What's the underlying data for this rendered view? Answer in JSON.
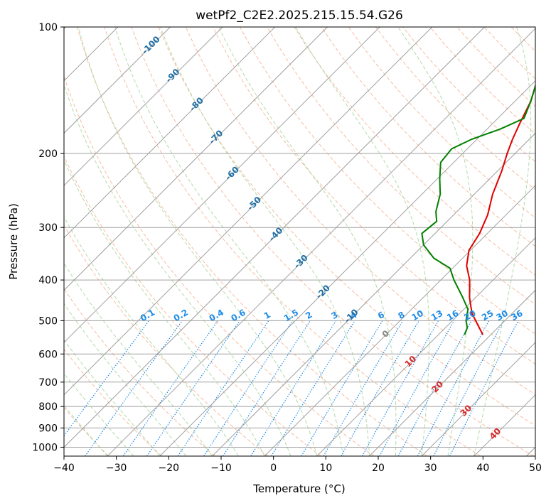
{
  "chart_data": {
    "type": "line",
    "title": "wetPf2_C2E2.2025.215.15.54.G26",
    "xlabel": "Temperature (°C)",
    "ylabel": "Pressure (hPa)",
    "xlim": [
      -40,
      50
    ],
    "ylim": [
      1050,
      100
    ],
    "y_scale": "log",
    "grid": true,
    "x_ticks": [
      "−40",
      "−30",
      "−20",
      "−10",
      "0",
      "10",
      "20",
      "30",
      "40",
      "50"
    ],
    "y_ticks": [
      "100",
      "200",
      "300",
      "400",
      "500",
      "600",
      "700",
      "800",
      "900",
      "1000"
    ],
    "series": [
      {
        "color": "#e00000",
        "pressure": [
          130,
          150,
          170,
          185,
          200,
          220,
          250,
          280,
          310,
          340,
          370,
          400,
          440,
          480,
          520,
          540
        ],
        "temperature": [
          -20.5,
          -17,
          -14.8,
          -13.2,
          -11.5,
          -9.2,
          -6.5,
          -3.5,
          -1.5,
          -0.3,
          2.2,
          5.5,
          8.8,
          12.3,
          16.5,
          18.5
        ]
      },
      {
        "color": "#008000",
        "pressure": [
          130,
          150,
          165,
          175,
          185,
          195,
          210,
          230,
          250,
          275,
          290,
          310,
          330,
          355,
          375,
          400,
          440,
          470,
          500,
          520,
          540
        ],
        "temperature": [
          -20.5,
          -17,
          -15,
          -17.5,
          -21,
          -23,
          -22.5,
          -19.5,
          -16.5,
          -14,
          -12,
          -12.5,
          -10,
          -5.5,
          -0.5,
          2.5,
          7.5,
          10.8,
          12.6,
          14.2,
          15
        ]
      }
    ],
    "isotherm_labels": [
      "-100",
      "-90",
      "-80",
      "-70",
      "-60",
      "-50",
      "-40",
      "-30",
      "-20",
      "-10",
      "0",
      "10",
      "20",
      "30",
      "40"
    ],
    "mixing_ratio_labels": [
      "0.1",
      "0.2",
      "0.4",
      "0.6",
      "1",
      "1.5",
      "2",
      "3",
      "4",
      "6",
      "8",
      "10",
      "13",
      "16",
      "20",
      "25",
      "30",
      "36"
    ],
    "colors": {
      "temperature": "#e00000",
      "dewpoint": "#008000",
      "dry_adiabat": "#f4a582",
      "moist_adiabat": "#a6d49a",
      "mixing_ratio": "#1f8de8",
      "isotherm_label_cold": "#1f6fa6",
      "isotherm_label_zero": "#888888",
      "isotherm_label_warm": "#d62728",
      "isotherm": "#a0a0a0"
    }
  }
}
